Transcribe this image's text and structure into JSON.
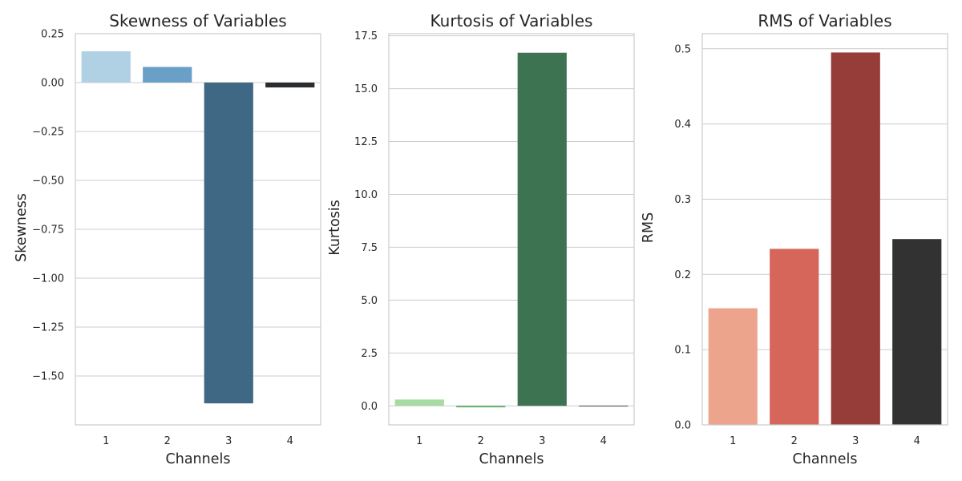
{
  "chart_data": [
    {
      "type": "bar",
      "title": "Skewness of Variables",
      "xlabel": "Channels",
      "ylabel": "Skewness",
      "categories": [
        "1",
        "2",
        "3",
        "4"
      ],
      "values": [
        0.16,
        0.08,
        -1.64,
        -0.025
      ],
      "colors": [
        "#b0d0e4",
        "#6aa0c8",
        "#3f6884",
        "#2a2d30"
      ],
      "ylim": [
        -1.75,
        0.25
      ],
      "yticks": [
        0.25,
        0.0,
        -0.25,
        -0.5,
        -0.75,
        -1.0,
        -1.25,
        -1.5
      ],
      "ytick_labels": [
        "0.25",
        "0.00",
        "−0.25",
        "−0.50",
        "−0.75",
        "−1.00",
        "−1.25",
        "−1.50"
      ],
      "grid": true
    },
    {
      "type": "bar",
      "title": "Kurtosis of Variables",
      "xlabel": "Channels",
      "ylabel": "Kurtosis",
      "categories": [
        "1",
        "2",
        "3",
        "4"
      ],
      "values": [
        0.3,
        -0.07,
        16.7,
        -0.03
      ],
      "colors": [
        "#a8dba3",
        "#5cae67",
        "#3d7350",
        "#2b2b2b"
      ],
      "ylim": [
        -0.9,
        17.6
      ],
      "yticks": [
        0.0,
        2.5,
        5.0,
        7.5,
        10.0,
        12.5,
        15.0,
        17.5
      ],
      "ytick_labels": [
        "0.0",
        "2.5",
        "5.0",
        "7.5",
        "10.0",
        "12.5",
        "15.0",
        "17.5"
      ],
      "grid": true
    },
    {
      "type": "bar",
      "title": "RMS of Variables",
      "xlabel": "Channels",
      "ylabel": "RMS",
      "categories": [
        "1",
        "2",
        "3",
        "4"
      ],
      "values": [
        0.155,
        0.234,
        0.495,
        0.247
      ],
      "colors": [
        "#eda48c",
        "#d6665a",
        "#963d39",
        "#323232"
      ],
      "ylim": [
        0,
        0.52
      ],
      "yticks": [
        0.0,
        0.1,
        0.2,
        0.3,
        0.4,
        0.5
      ],
      "ytick_labels": [
        "0.0",
        "0.1",
        "0.2",
        "0.3",
        "0.4",
        "0.5"
      ],
      "grid": true
    }
  ]
}
